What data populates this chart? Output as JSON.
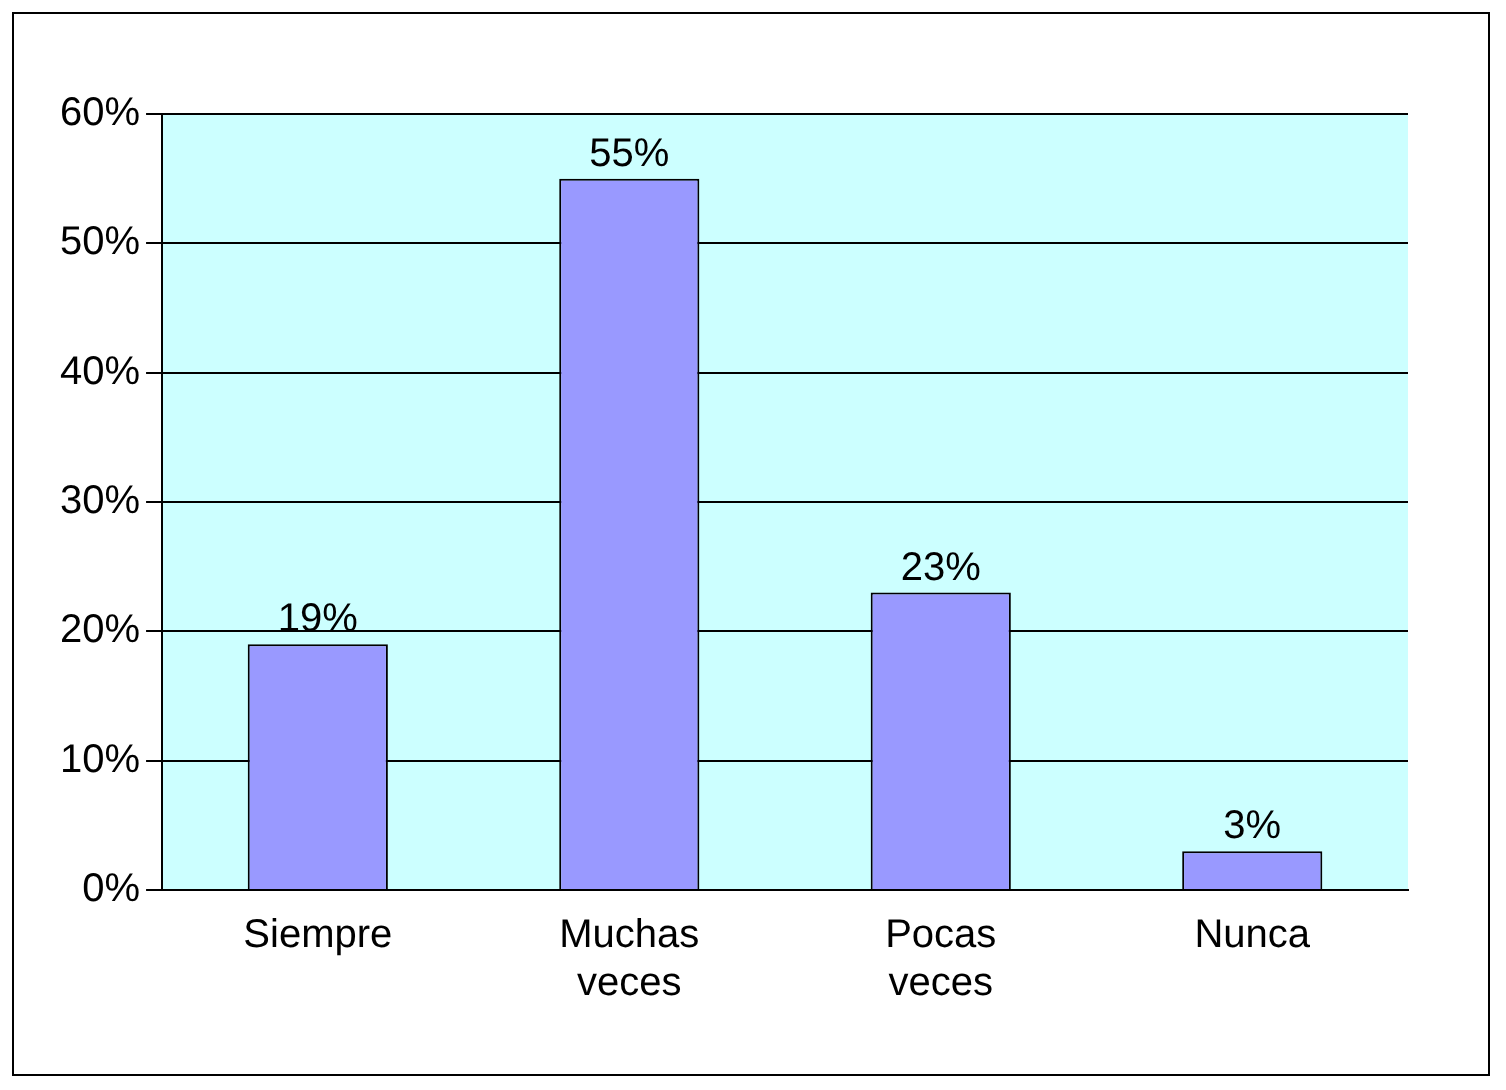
{
  "chart_data": {
    "type": "bar",
    "categories": [
      "Siempre",
      "Muchas veces",
      "Pocas veces",
      "Nunca"
    ],
    "values": [
      19,
      55,
      23,
      3
    ],
    "color": "#9999ff",
    "value_labels": [
      "19%",
      "55%",
      "23%",
      "3%"
    ],
    "ylim": [
      0,
      60
    ],
    "yticks": [
      {
        "value": 0,
        "label": "0%"
      },
      {
        "value": 10,
        "label": "10%"
      },
      {
        "value": 20,
        "label": "20%"
      },
      {
        "value": 30,
        "label": "30%"
      },
      {
        "value": 40,
        "label": "40%"
      },
      {
        "value": 50,
        "label": "50%"
      },
      {
        "value": 60,
        "label": "60%"
      }
    ],
    "grid": "y",
    "legend": false
  }
}
